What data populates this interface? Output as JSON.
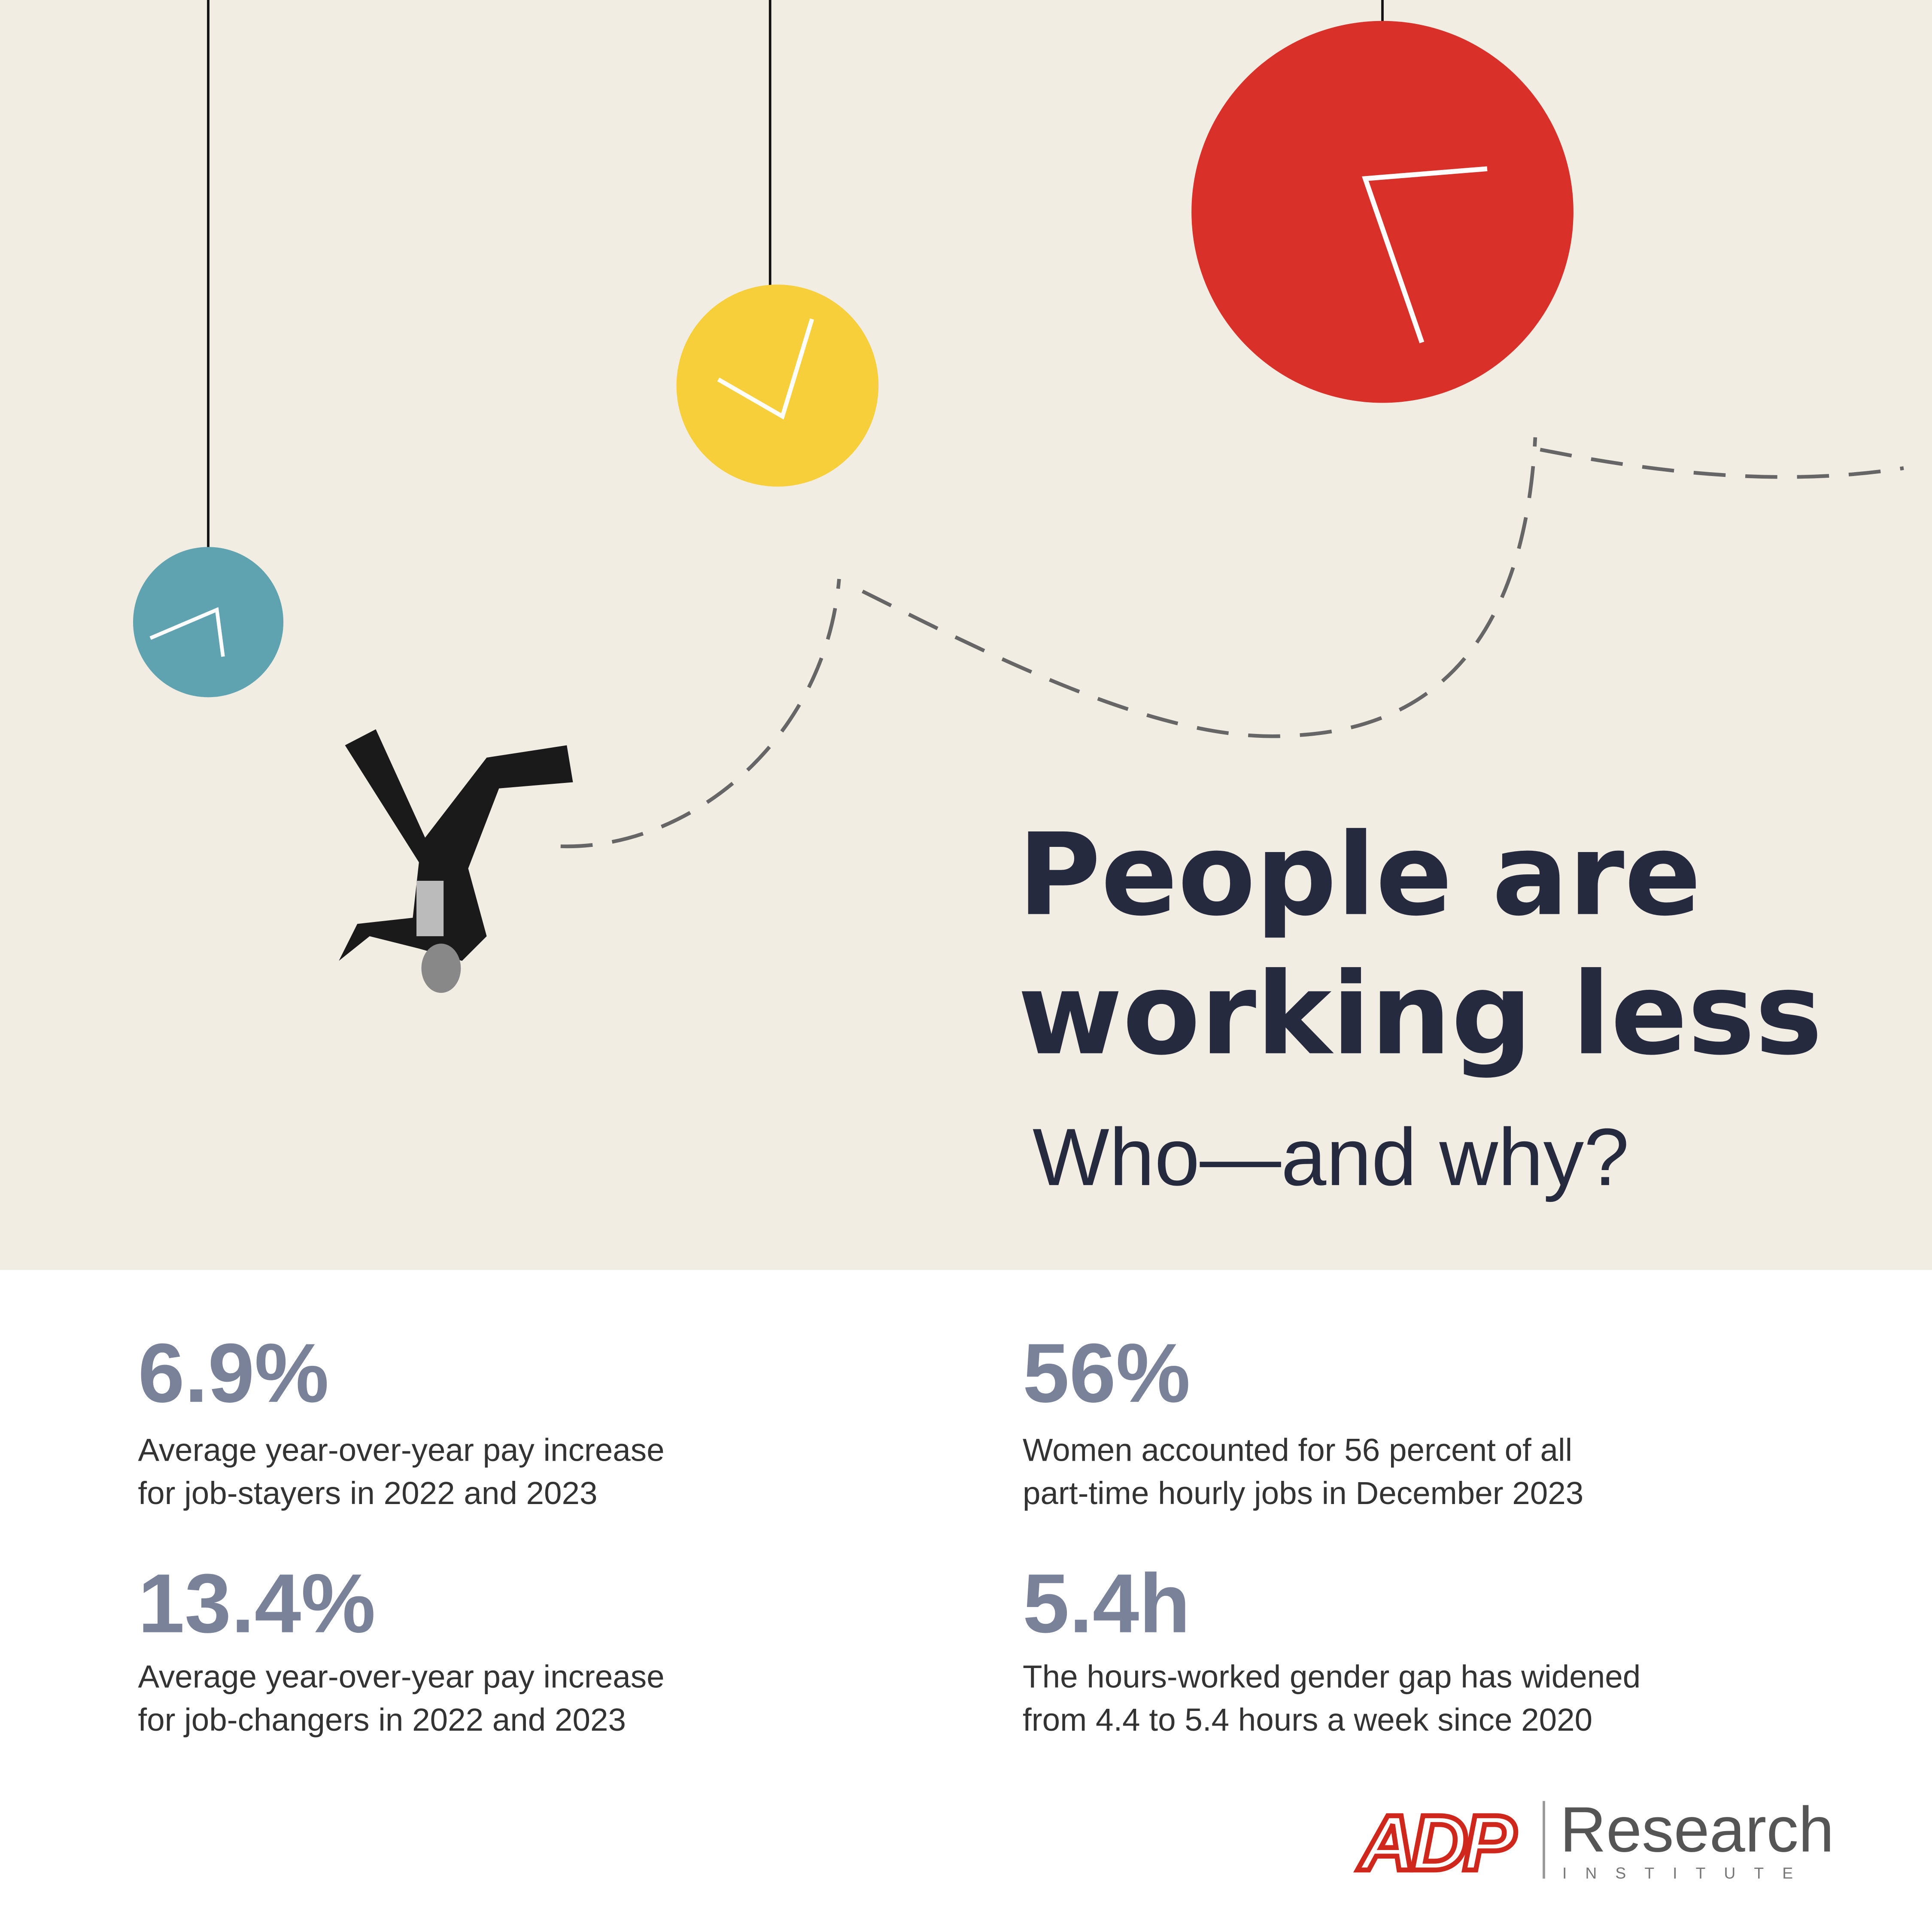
{
  "header": {
    "title_lines": [
      "People are",
      "working less"
    ],
    "subtitle": "Who—and why?"
  },
  "stats": [
    {
      "value": "6.9%",
      "description": [
        "Average year-over-year pay increase",
        "for job-stayers in 2022 and 2023"
      ]
    },
    {
      "value": "56%",
      "description": [
        "Women accounted for 56 percent of all",
        "part-time hourly jobs in December 2023"
      ]
    },
    {
      "value": "13.4%",
      "description": [
        "Average year-over-year pay increase",
        "for job-changers in 2022 and 2023"
      ]
    },
    {
      "value": "5.4h",
      "description": [
        "The hours-worked gender gap has widened",
        "from 4.4 to 5.4 hours a week since 2020"
      ]
    }
  ],
  "logo": {
    "brand": "ADP",
    "name": "Research",
    "tagline": "INSTITUTE"
  }
}
